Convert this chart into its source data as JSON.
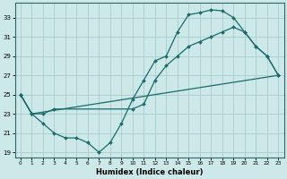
{
  "xlabel": "Humidex (Indice chaleur)",
  "background_color": "#cce8e8",
  "grid_color": "#aacccc",
  "line_color": "#1a6b6b",
  "xlim": [
    -0.5,
    23.5
  ],
  "ylim": [
    18.5,
    34.5
  ],
  "xticks": [
    0,
    1,
    2,
    3,
    4,
    5,
    6,
    7,
    8,
    9,
    10,
    11,
    12,
    13,
    14,
    15,
    16,
    17,
    18,
    19,
    20,
    21,
    22,
    23
  ],
  "yticks": [
    19,
    21,
    23,
    25,
    27,
    29,
    31,
    33
  ],
  "series1": [
    [
      0,
      25
    ],
    [
      1,
      23
    ],
    [
      2,
      22
    ],
    [
      3,
      21
    ],
    [
      4,
      20.5
    ],
    [
      5,
      20.5
    ],
    [
      6,
      20
    ],
    [
      7,
      19
    ],
    [
      8,
      20
    ],
    [
      9,
      22
    ],
    [
      10,
      24.5
    ],
    [
      11,
      26.5
    ],
    [
      12,
      28.5
    ],
    [
      13,
      29
    ],
    [
      14,
      31.5
    ],
    [
      15,
      33.3
    ],
    [
      16,
      33.5
    ],
    [
      17,
      33.8
    ],
    [
      18,
      33.7
    ],
    [
      19,
      33
    ],
    [
      20,
      31.5
    ],
    [
      21,
      30
    ],
    [
      22,
      29
    ],
    [
      23,
      27
    ]
  ],
  "series2": [
    [
      0,
      25
    ],
    [
      1,
      23
    ],
    [
      2,
      23
    ],
    [
      3,
      23.5
    ],
    [
      10,
      23.5
    ],
    [
      11,
      24
    ],
    [
      12,
      26.5
    ],
    [
      13,
      28
    ],
    [
      14,
      29
    ],
    [
      15,
      30
    ],
    [
      16,
      30.5
    ],
    [
      17,
      31
    ],
    [
      18,
      31.5
    ],
    [
      19,
      32
    ],
    [
      20,
      31.5
    ],
    [
      21,
      30
    ],
    [
      22,
      29
    ],
    [
      23,
      27
    ]
  ],
  "series3": [
    [
      0,
      25
    ],
    [
      1,
      23
    ],
    [
      23,
      27
    ]
  ]
}
